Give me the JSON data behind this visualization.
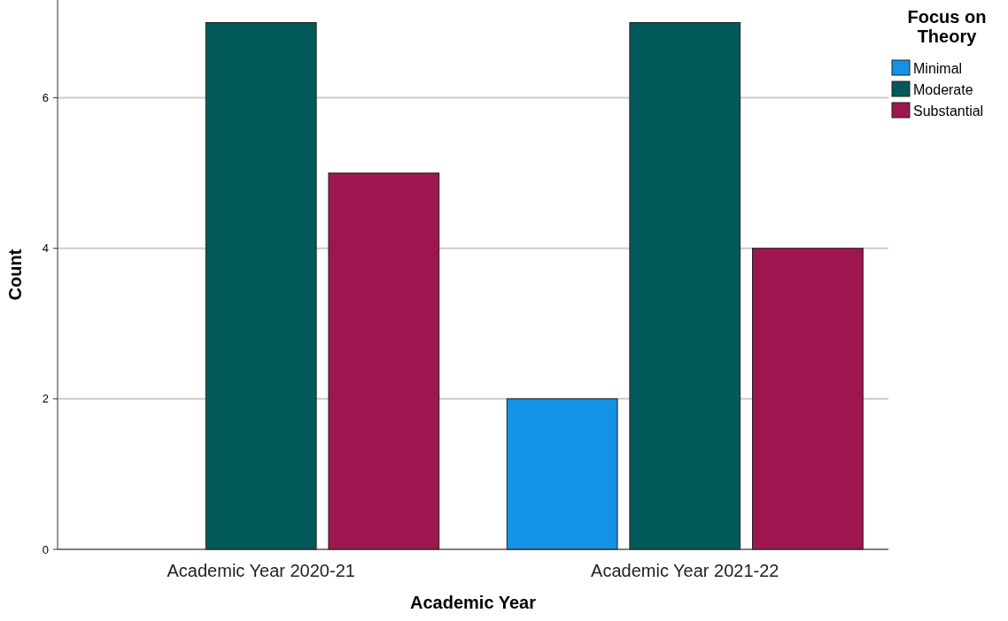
{
  "chart_data": {
    "type": "bar",
    "xlabel": "Academic Year",
    "ylabel": "Count",
    "legend_title": "Focus on Theory",
    "categories": [
      "Academic Year 2020-21",
      "Academic Year 2021-22"
    ],
    "series": [
      {
        "name": "Minimal",
        "color": "#1492e6",
        "values": [
          0,
          2
        ]
      },
      {
        "name": "Moderate",
        "color": "#01595a",
        "values": [
          7,
          7
        ]
      },
      {
        "name": "Substantial",
        "color": "#9e1650",
        "values": [
          5,
          4
        ]
      }
    ],
    "ylim": [
      0,
      7.3
    ],
    "yticks": [
      0,
      2,
      4,
      6
    ],
    "grid": "y",
    "legend": "top right"
  }
}
